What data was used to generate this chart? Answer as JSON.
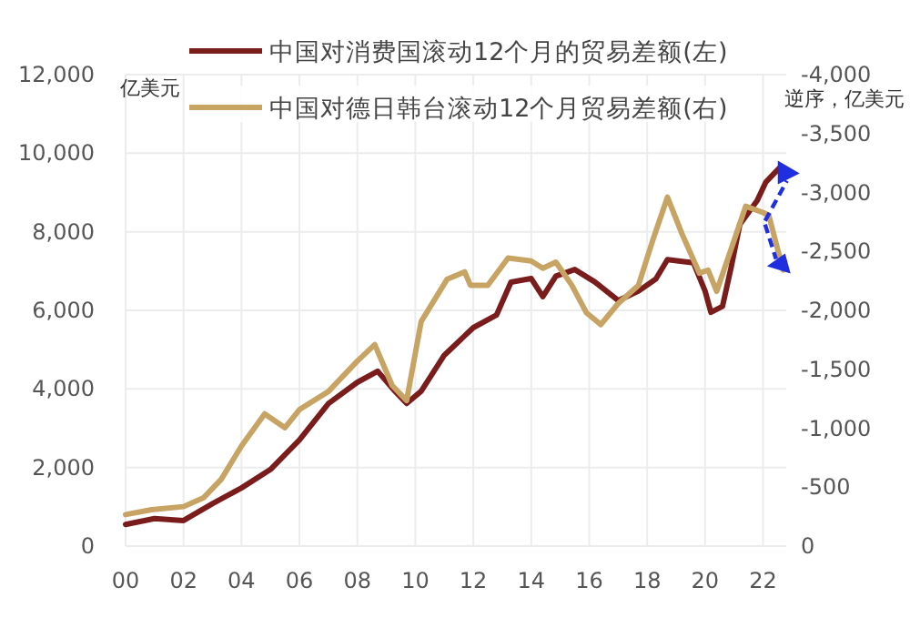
{
  "chart_data": {
    "type": "line",
    "ylabel": "亿美元",
    "y2label": "逆序，亿美元",
    "xlim": [
      2000,
      2022.8
    ],
    "xticks": [
      {
        "value": 2000,
        "label": "00"
      },
      {
        "value": 2002,
        "label": "02"
      },
      {
        "value": 2004,
        "label": "04"
      },
      {
        "value": 2006,
        "label": "06"
      },
      {
        "value": 2008,
        "label": "08"
      },
      {
        "value": 2010,
        "label": "10"
      },
      {
        "value": 2012,
        "label": "12"
      },
      {
        "value": 2014,
        "label": "14"
      },
      {
        "value": 2016,
        "label": "16"
      },
      {
        "value": 2018,
        "label": "18"
      },
      {
        "value": 2020,
        "label": "20"
      },
      {
        "value": 2022,
        "label": "22"
      }
    ],
    "ylim": [
      0,
      12000
    ],
    "yticks": [
      {
        "value": 0,
        "label": "0"
      },
      {
        "value": 2000,
        "label": "2,000"
      },
      {
        "value": 4000,
        "label": "4,000"
      },
      {
        "value": 6000,
        "label": "6,000"
      },
      {
        "value": 8000,
        "label": "8,000"
      },
      {
        "value": 10000,
        "label": "10,000"
      },
      {
        "value": 12000,
        "label": "12,000"
      }
    ],
    "y2lim": [
      0,
      -4000
    ],
    "y2ticks": [
      {
        "value": 0,
        "label": "0"
      },
      {
        "value": -500,
        "label": "-500"
      },
      {
        "value": -1000,
        "label": "-1,000"
      },
      {
        "value": -1500,
        "label": "-1,500"
      },
      {
        "value": -2000,
        "label": "-2,000"
      },
      {
        "value": -2500,
        "label": "-2,500"
      },
      {
        "value": -3000,
        "label": "-3,000"
      },
      {
        "value": -3500,
        "label": "-3,500"
      },
      {
        "value": -4000,
        "label": "-4,000"
      }
    ],
    "grid": true,
    "legend": "top",
    "line_style": "solid",
    "marker": "none",
    "series": [
      {
        "name": "中国对消费国滚动12个月的贸易差额(左)",
        "color": "#7b1c1c",
        "x": [
          2000,
          2001,
          2002,
          2003,
          2004,
          2005,
          2006,
          2007,
          2008,
          2008.7,
          2009.3,
          2009.7,
          2010.2,
          2011,
          2012,
          2012.8,
          2013.3,
          2014,
          2014.4,
          2014.85,
          2015.5,
          2016.2,
          2017,
          2017.7,
          2018.3,
          2018.7,
          2019.6,
          2020,
          2020.2,
          2020.6,
          2020.9,
          2021.2,
          2021.8,
          2022.1,
          2022.6
        ],
        "values": [
          550,
          700,
          650,
          1080,
          1480,
          1950,
          2700,
          3630,
          4170,
          4450,
          3940,
          3630,
          3940,
          4860,
          5560,
          5880,
          6720,
          6810,
          6350,
          6870,
          7040,
          6720,
          6250,
          6490,
          6800,
          7290,
          7210,
          6490,
          5950,
          6100,
          7100,
          8190,
          8800,
          9270,
          9650
        ]
      },
      {
        "name": "中国对德日韩台滚动12个月贸易差额(右)",
        "color": "#c8a464",
        "axis": "y2",
        "x": [
          2000,
          2000.9,
          2002,
          2002.7,
          2003.3,
          2004,
          2004.8,
          2005.5,
          2006,
          2007,
          2008,
          2008.6,
          2009.2,
          2009.7,
          2010.2,
          2011.1,
          2011.7,
          2011.9,
          2012.5,
          2013.2,
          2014,
          2014.4,
          2014.85,
          2015.4,
          2015.9,
          2016.4,
          2017,
          2017.7,
          2018.2,
          2018.7,
          2019.2,
          2019.8,
          2020.1,
          2020.4,
          2020.9,
          2021.4,
          2022,
          2022.2,
          2022.5,
          2022.7
        ],
        "values": [
          -267,
          -309,
          -335,
          -412,
          -567,
          -849,
          -1122,
          -1004,
          -1158,
          -1312,
          -1570,
          -1709,
          -1363,
          -1235,
          -1904,
          -2265,
          -2327,
          -2213,
          -2213,
          -2444,
          -2419,
          -2357,
          -2409,
          -2213,
          -1981,
          -1879,
          -2058,
          -2213,
          -2599,
          -2960,
          -2651,
          -2316,
          -2342,
          -2162,
          -2521,
          -2883,
          -2830,
          -2805,
          -2521,
          -2342
        ]
      }
    ]
  }
}
